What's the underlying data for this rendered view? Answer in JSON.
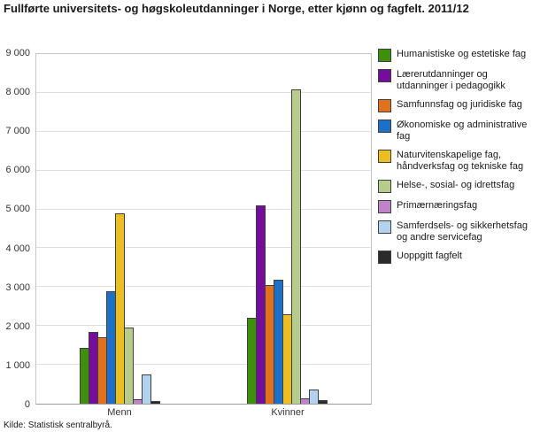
{
  "title": "Fullførte universitets- og høgskoleutdanninger i Norge, etter kjønn og fagfelt. 2011/12",
  "source": "Kilde: Statistisk sentralbyrå.",
  "chart_data": {
    "type": "bar",
    "title": "Fullførte universitets- og høgskoleutdanninger i Norge, etter kjønn og fagfelt. 2011/12",
    "categories": [
      "Menn",
      "Kvinner"
    ],
    "series": [
      {
        "name": "Humanistiske og estetiske fag",
        "color": "#3f8f0e",
        "values": [
          1430,
          2200
        ]
      },
      {
        "name": "Lærerutdanninger og utdanninger i pedagogikk",
        "color": "#750d9c",
        "values": [
          1840,
          5100
        ]
      },
      {
        "name": "Samfunnsfag og juridiske fag",
        "color": "#e2711d",
        "values": [
          1720,
          3050
        ]
      },
      {
        "name": "Økonomiske og administrative fag",
        "color": "#1d70c8",
        "values": [
          2900,
          3200
        ]
      },
      {
        "name": "Naturvitenskapelige fag, håndverksfag og tekniske fag",
        "color": "#ecbe21",
        "values": [
          4900,
          2300
        ]
      },
      {
        "name": "Helse-, sosial- og idrettsfag",
        "color": "#b5cc8b",
        "values": [
          1950,
          8100
        ]
      },
      {
        "name": "Primærnæringsfag",
        "color": "#be83c9",
        "values": [
          110,
          140
        ]
      },
      {
        "name": "Samferdsels- og sikkerhetsfag og andre servicefag",
        "color": "#b3d2ef",
        "values": [
          750,
          360
        ]
      },
      {
        "name": "Uoppgitt fagfelt",
        "color": "#2b2b2b",
        "values": [
          70,
          90
        ]
      }
    ],
    "xlabel": "",
    "ylabel": "",
    "ylim": [
      0,
      9000
    ],
    "ytick_step": 1000,
    "grid": true,
    "legend_position": "right"
  }
}
